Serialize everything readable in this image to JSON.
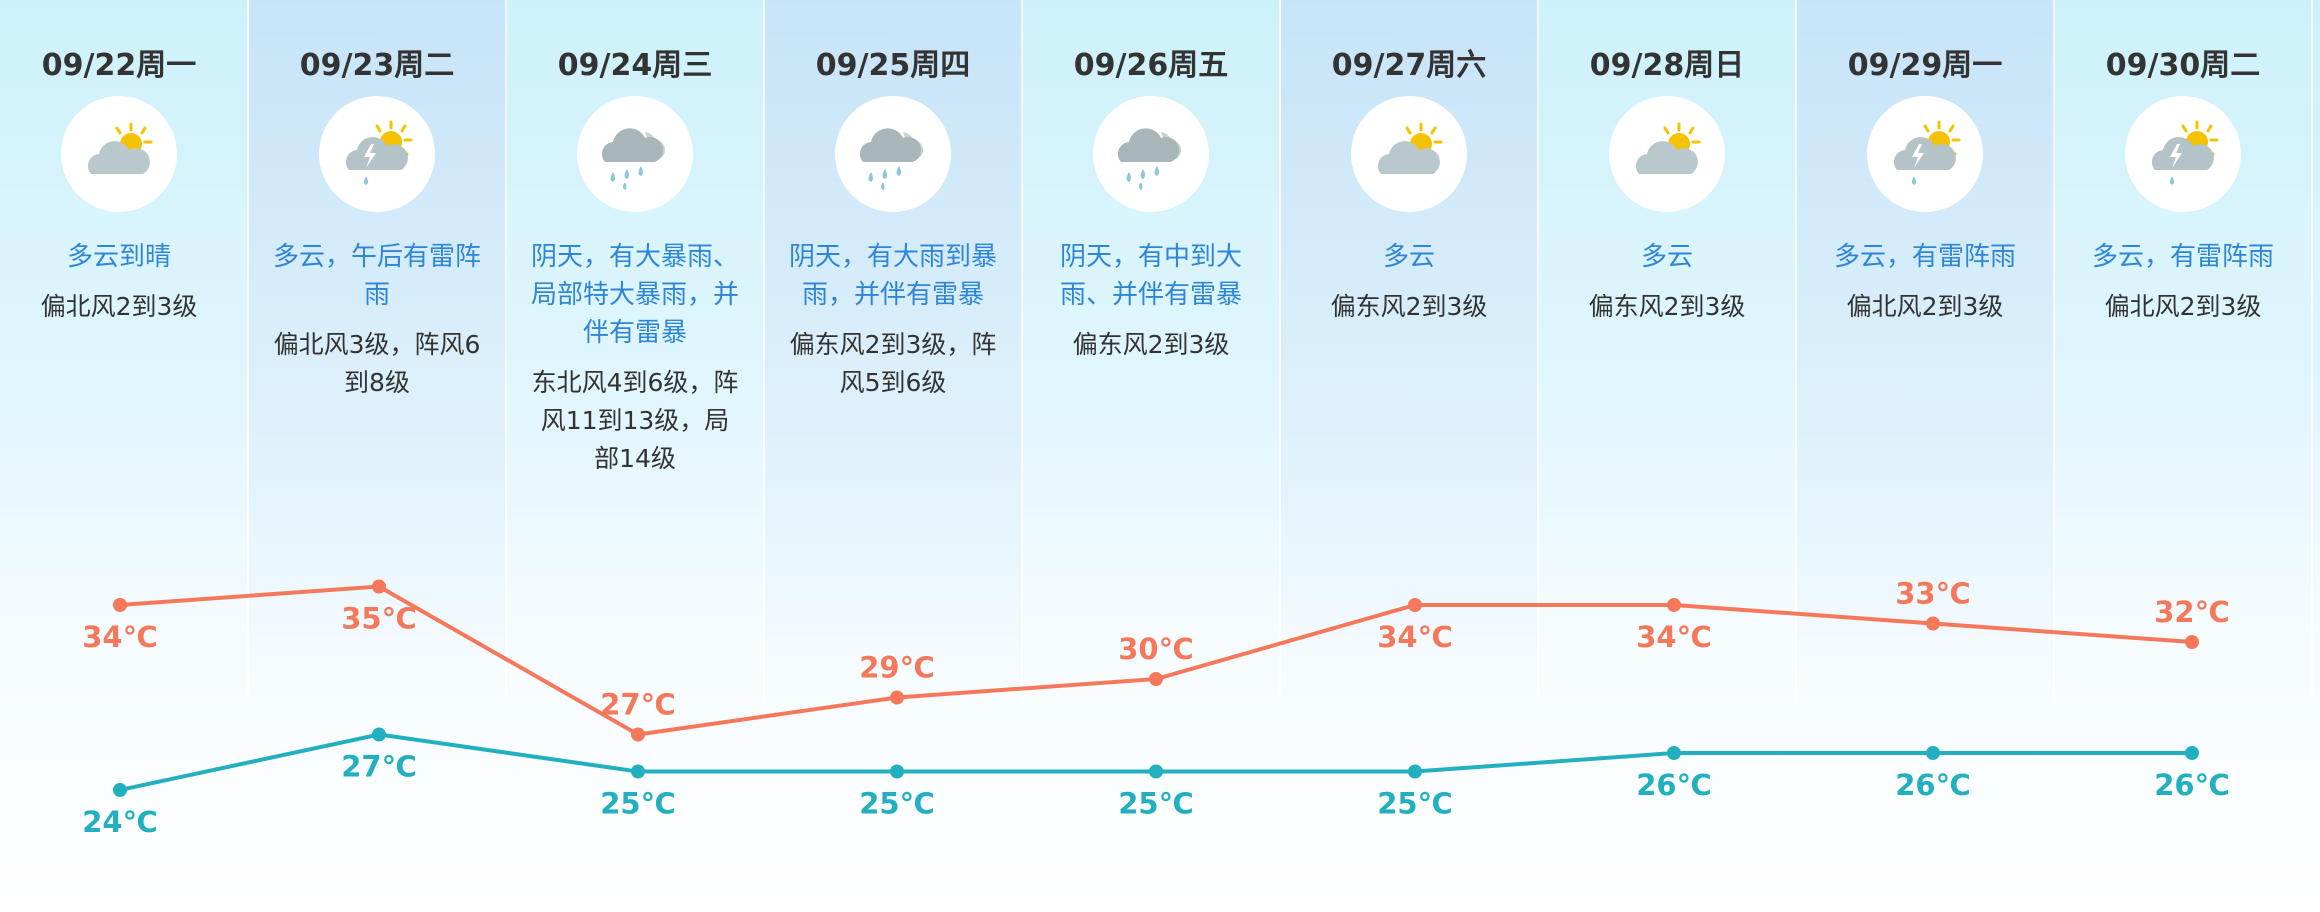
{
  "days": [
    {
      "date": "09/22周一",
      "icon": "partly-cloudy-icon",
      "desc": "多云到晴",
      "wind": "偏北风2到3级",
      "high": 34,
      "low": 24,
      "high_label": "34℃",
      "low_label": "24℃"
    },
    {
      "date": "09/23周二",
      "icon": "thunder-shower-icon",
      "desc": "多云，午后有雷阵雨",
      "wind": "偏北风3级，阵风6到8级",
      "high": 35,
      "low": 27,
      "high_label": "35℃",
      "low_label": "27℃"
    },
    {
      "date": "09/24周三",
      "icon": "heavy-rain-icon",
      "desc": "阴天，有大暴雨、局部特大暴雨，并伴有雷暴",
      "wind": "东北风4到6级，阵风11到13级，局部14级",
      "high": 27,
      "low": 25,
      "high_label": "27℃",
      "low_label": "25℃"
    },
    {
      "date": "09/25周四",
      "icon": "heavy-rain-icon",
      "desc": "阴天，有大雨到暴雨，并伴有雷暴",
      "wind": "偏东风2到3级，阵风5到6级",
      "high": 29,
      "low": 25,
      "high_label": "29℃",
      "low_label": "25℃"
    },
    {
      "date": "09/26周五",
      "icon": "heavy-rain-icon",
      "desc": "阴天，有中到大雨、并伴有雷暴",
      "wind": "偏东风2到3级",
      "high": 30,
      "low": 25,
      "high_label": "30℃",
      "low_label": "25℃"
    },
    {
      "date": "09/27周六",
      "icon": "partly-cloudy-icon",
      "desc": "多云",
      "wind": "偏东风2到3级",
      "high": 34,
      "low": 25,
      "high_label": "34℃",
      "low_label": "25℃"
    },
    {
      "date": "09/28周日",
      "icon": "partly-cloudy-icon",
      "desc": "多云",
      "wind": "偏东风2到3级",
      "high": 34,
      "low": 26,
      "high_label": "34℃",
      "low_label": "26℃"
    },
    {
      "date": "09/29周一",
      "icon": "thunder-shower-icon",
      "desc": "多云，有雷阵雨",
      "wind": "偏北风2到3级",
      "high": 33,
      "low": 26,
      "high_label": "33℃",
      "low_label": "26℃"
    },
    {
      "date": "09/30周二",
      "icon": "thunder-shower-icon",
      "desc": "多云，有雷阵雨",
      "wind": "偏北风2到3级",
      "high": 32,
      "low": 26,
      "high_label": "32℃",
      "low_label": "26℃"
    }
  ],
  "colors": {
    "high": "#f5785a",
    "low": "#22b0c0",
    "desc": "#2f86d6"
  }
}
